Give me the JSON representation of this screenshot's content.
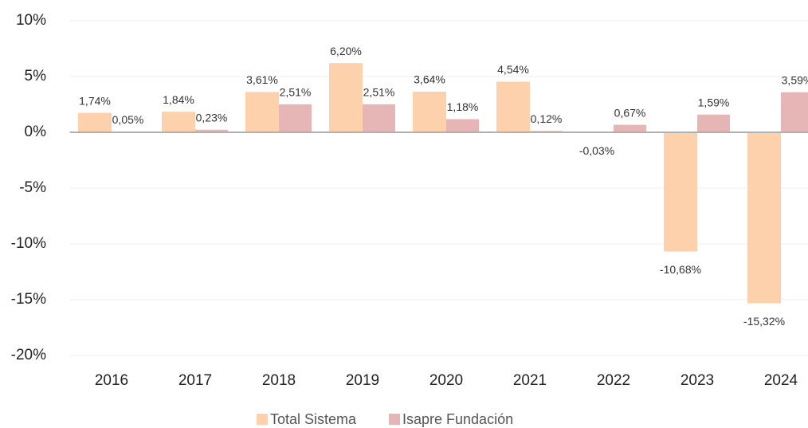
{
  "chart_data": {
    "type": "bar",
    "categories": [
      "2016",
      "2017",
      "2018",
      "2019",
      "2020",
      "2021",
      "2022",
      "2023",
      "2024"
    ],
    "series": [
      {
        "name": "Total Sistema",
        "color": "#fcd1ab",
        "values": [
          1.74,
          1.84,
          3.61,
          6.2,
          3.64,
          4.54,
          -0.03,
          -10.68,
          -15.32
        ],
        "value_labels": [
          "1,74%",
          "1,84%",
          "3,61%",
          "6,20%",
          "3,64%",
          "4,54%",
          "-0,03%",
          "-10,68%",
          "-15,32%"
        ]
      },
      {
        "name": "Isapre Fundación",
        "color": "#e6b5b6",
        "values": [
          0.05,
          0.23,
          2.51,
          2.51,
          1.18,
          0.12,
          0.67,
          1.59,
          3.59
        ],
        "value_labels": [
          "0,05%",
          "0,23%",
          "2,51%",
          "2,51%",
          "1,18%",
          "0,12%",
          "0,67%",
          "1,59%",
          "3,59%"
        ]
      }
    ],
    "ylim": [
      -20,
      10
    ],
    "yticks": [
      {
        "value": -20,
        "label": "-20%"
      },
      {
        "value": -15,
        "label": "-15%"
      },
      {
        "value": -10,
        "label": "-10%"
      },
      {
        "value": -5,
        "label": "-5%"
      },
      {
        "value": 0,
        "label": "0%"
      },
      {
        "value": 5,
        "label": "5%"
      },
      {
        "value": 10,
        "label": "10%"
      }
    ],
    "grid": true,
    "legend": "bottom"
  }
}
